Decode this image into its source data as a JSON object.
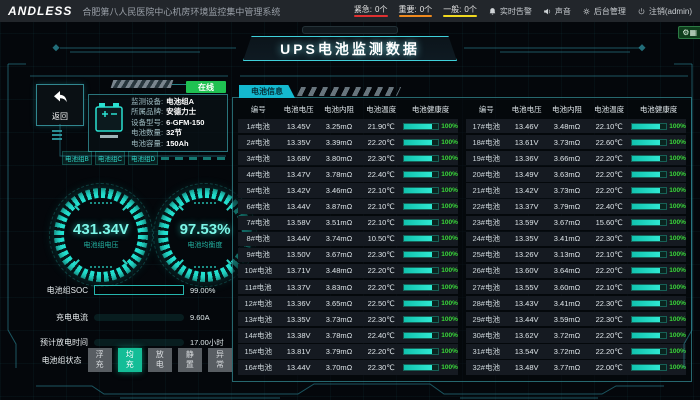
{
  "topbar": {
    "logo": "ANDLESS",
    "system_title": "合肥第八人民医院中心机房环境监控集中管理系统",
    "alarms": [
      {
        "label": "紧急:",
        "count": "0个",
        "color": "#e03030"
      },
      {
        "label": "重要:",
        "count": "0个",
        "color": "#f08a1e"
      },
      {
        "label": "一般:",
        "count": "0个",
        "color": "#f0d820"
      }
    ],
    "menu": [
      {
        "icon": "bell-icon",
        "label": "实时告警"
      },
      {
        "icon": "speaker-icon",
        "label": "声音"
      },
      {
        "icon": "gear-icon",
        "label": "后台管理"
      },
      {
        "icon": "logout-icon",
        "label": "注销(admin)"
      }
    ],
    "corner_badge": "⚙▦"
  },
  "page_title": "UPS电池监测数据",
  "device_panel": {
    "back_label": "返回",
    "online_badge": "在线",
    "fields": [
      {
        "label": "监测设备:",
        "value": "电池组A"
      },
      {
        "label": "所属品牌:",
        "value": "安德力士"
      },
      {
        "label": "设备型号:",
        "value": "6-GFM-150"
      },
      {
        "label": "电池数量:",
        "value": "32节"
      },
      {
        "label": "电池容量:",
        "value": "150Ah"
      }
    ],
    "group_tabs": [
      "电池组B",
      "电池组C",
      "电池组D"
    ]
  },
  "gauges": [
    {
      "value": "431.34V",
      "label": "电池组电压"
    },
    {
      "value": "97.53%",
      "label": "电池均衡度"
    }
  ],
  "meters": [
    {
      "label": "电池组SOC",
      "value": "99.00%",
      "percent": 99
    },
    {
      "label": "充电电流",
      "value": "9.60A",
      "percent": 95
    },
    {
      "label": "预计放电时间",
      "value": "17.00小时",
      "percent": 95
    }
  ],
  "status": {
    "label": "电池组状态",
    "options": [
      "浮充",
      "均充",
      "放电",
      "静置",
      "异常"
    ],
    "active": "均充"
  },
  "table": {
    "tab": "电池信息",
    "headers": [
      "编号",
      "电池电压",
      "电池内阻",
      "电池温度",
      "电池健康度"
    ],
    "left_rows": [
      [
        "1#电池",
        "13.45V",
        "3.25mΩ",
        "21.90℃",
        "100%"
      ],
      [
        "2#电池",
        "13.35V",
        "3.39mΩ",
        "22.20℃",
        "100%"
      ],
      [
        "3#电池",
        "13.68V",
        "3.80mΩ",
        "22.30℃",
        "100%"
      ],
      [
        "4#电池",
        "13.47V",
        "3.78mΩ",
        "22.40℃",
        "100%"
      ],
      [
        "5#电池",
        "13.42V",
        "3.46mΩ",
        "22.10℃",
        "100%"
      ],
      [
        "6#电池",
        "13.44V",
        "3.87mΩ",
        "22.10℃",
        "100%"
      ],
      [
        "7#电池",
        "13.58V",
        "3.51mΩ",
        "22.10℃",
        "100%"
      ],
      [
        "8#电池",
        "13.44V",
        "3.74mΩ",
        "10.50℃",
        "100%"
      ],
      [
        "9#电池",
        "13.50V",
        "3.67mΩ",
        "22.30℃",
        "100%"
      ],
      [
        "10#电池",
        "13.71V",
        "3.48mΩ",
        "22.20℃",
        "100%"
      ],
      [
        "11#电池",
        "13.37V",
        "3.83mΩ",
        "22.20℃",
        "100%"
      ],
      [
        "12#电池",
        "13.36V",
        "3.65mΩ",
        "22.50℃",
        "100%"
      ],
      [
        "13#电池",
        "13.35V",
        "3.73mΩ",
        "22.30℃",
        "100%"
      ],
      [
        "14#电池",
        "13.38V",
        "3.78mΩ",
        "22.40℃",
        "100%"
      ],
      [
        "15#电池",
        "13.81V",
        "3.79mΩ",
        "22.20℃",
        "100%"
      ],
      [
        "16#电池",
        "13.44V",
        "3.70mΩ",
        "22.30℃",
        "100%"
      ]
    ],
    "right_rows": [
      [
        "17#电池",
        "13.46V",
        "3.48mΩ",
        "22.10℃",
        "100%"
      ],
      [
        "18#电池",
        "13.61V",
        "3.73mΩ",
        "22.60℃",
        "100%"
      ],
      [
        "19#电池",
        "13.36V",
        "3.66mΩ",
        "22.20℃",
        "100%"
      ],
      [
        "20#电池",
        "13.49V",
        "3.63mΩ",
        "22.20℃",
        "100%"
      ],
      [
        "21#电池",
        "13.42V",
        "3.73mΩ",
        "22.20℃",
        "100%"
      ],
      [
        "22#电池",
        "13.37V",
        "3.79mΩ",
        "22.40℃",
        "100%"
      ],
      [
        "23#电池",
        "13.59V",
        "3.67mΩ",
        "15.60℃",
        "100%"
      ],
      [
        "24#电池",
        "13.35V",
        "3.41mΩ",
        "22.30℃",
        "100%"
      ],
      [
        "25#电池",
        "13.26V",
        "3.13mΩ",
        "22.10℃",
        "100%"
      ],
      [
        "26#电池",
        "13.60V",
        "3.64mΩ",
        "22.20℃",
        "100%"
      ],
      [
        "27#电池",
        "13.55V",
        "3.60mΩ",
        "22.10℃",
        "100%"
      ],
      [
        "28#电池",
        "13.43V",
        "3.41mΩ",
        "22.30℃",
        "100%"
      ],
      [
        "29#电池",
        "13.44V",
        "3.59mΩ",
        "22.30℃",
        "100%"
      ],
      [
        "30#电池",
        "13.62V",
        "3.72mΩ",
        "22.20℃",
        "100%"
      ],
      [
        "31#电池",
        "13.54V",
        "3.72mΩ",
        "22.20℃",
        "100%"
      ],
      [
        "32#电池",
        "13.48V",
        "3.77mΩ",
        "22.00℃",
        "100%"
      ]
    ]
  },
  "colors": {
    "accent": "#2be2d2",
    "health_green": "#39d839",
    "online_green": "#1fc152",
    "tab_cyan": "#14b9d0",
    "status_active": "#14bd97"
  }
}
